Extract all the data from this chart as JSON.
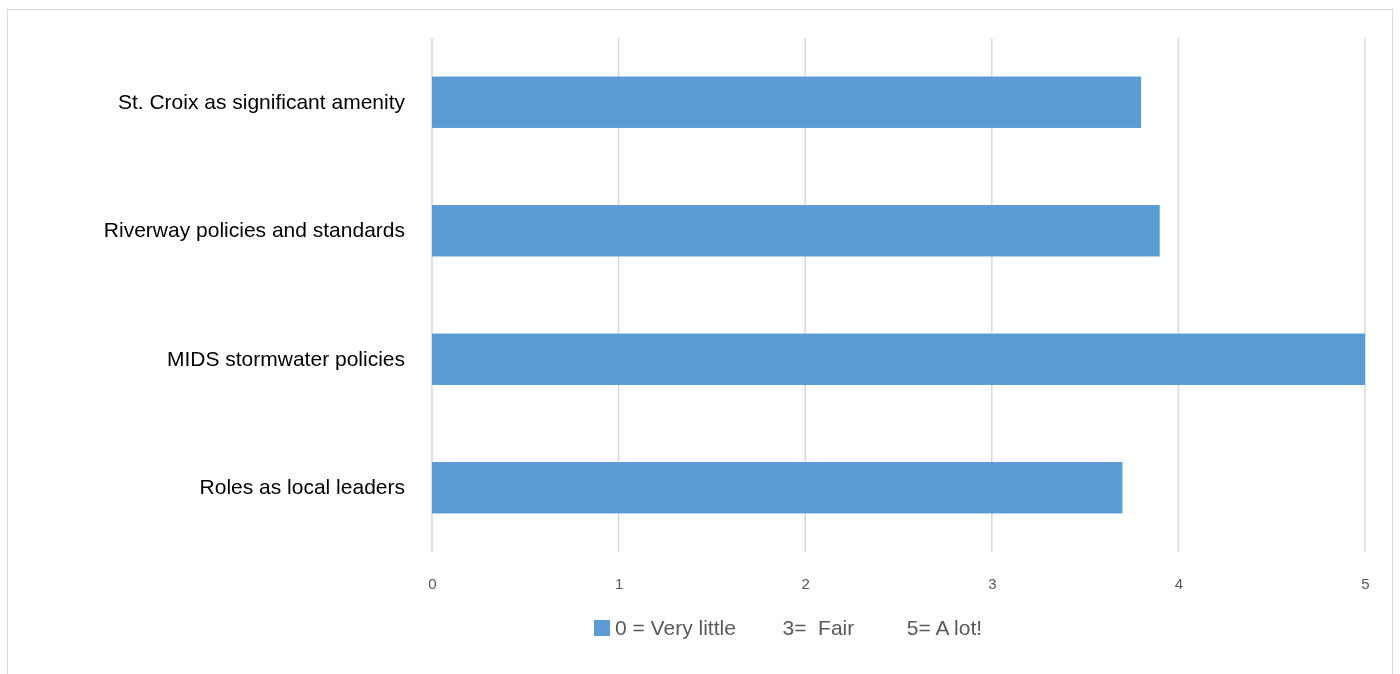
{
  "chart_data": {
    "type": "bar",
    "orientation": "horizontal",
    "categories": [
      "St. Croix as significant amenity",
      "Riverway policies and standards",
      "MIDS stormwater policies",
      "Roles as local leaders"
    ],
    "series": [
      {
        "name": "0 = Very little        3=  Fair         5= A lot!",
        "color": "#5b9bd5",
        "values": [
          3.8,
          3.9,
          5.0,
          3.7
        ]
      }
    ],
    "xlim": [
      0,
      5
    ],
    "xticks": [
      0,
      1,
      2,
      3,
      4,
      5
    ],
    "grid": "x",
    "legend": "bottom"
  }
}
